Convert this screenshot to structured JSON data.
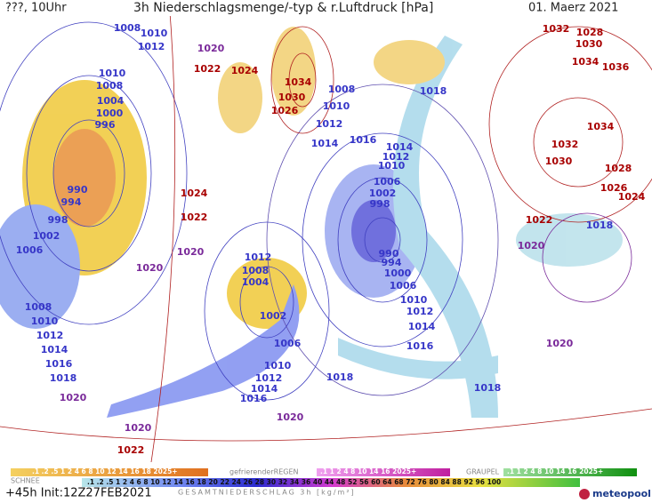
{
  "header": {
    "left": "???, 10Uhr",
    "title": "3h Niederschlagsmenge/-typ & r.Luftdruck [hPa]",
    "date": "01. Maerz 2021"
  },
  "isobar_labels": [
    "1008",
    "1010",
    "1012",
    "1020",
    "1022",
    "1024",
    "1034",
    "1030",
    "1026",
    "1008",
    "1010",
    "1012",
    "1014",
    "1016",
    "1018",
    "1032",
    "1028",
    "1030",
    "1034",
    "1036",
    "1034",
    "1032",
    "1030",
    "1028",
    "1026",
    "1024",
    "1022",
    "1020",
    "1018",
    "1020",
    "1010",
    "1008",
    "1004",
    "1000",
    "996",
    "990",
    "994",
    "998",
    "1002",
    "1006",
    "1024",
    "1022",
    "1020",
    "1020",
    "1012",
    "1008",
    "1004",
    "1002",
    "1006",
    "1010",
    "1012",
    "1014",
    "1016",
    "1018",
    "1020",
    "1020",
    "1022",
    "1020",
    "1018",
    "1016",
    "1014",
    "1012",
    "1010",
    "1008",
    "1014",
    "1012",
    "1010",
    "1006",
    "1002",
    "998",
    "990",
    "994",
    "1000",
    "1006",
    "1010",
    "1012",
    "1014",
    "1016",
    "1018"
  ],
  "legend": {
    "snow": "SCHNEE",
    "freezing_rain": "gefrierenderREGEN",
    "graupel": "GRAUPEL",
    "snow_scale": ".1 .2 .5 1 2 4 6 8 10 12 14 16 18 2025+",
    "rain_scale": ".1 1 2 4 8 10 14 16 2025+",
    "graupel_scale": ".1 1 2 4 8 10 14 16 2025+",
    "total_scale": ".1 .2 .5 1 2 4 6 8 10 12 14 16 18 20 22 24 26 28 30 32 34 36 40 44 48 52 56 60 64 68 72 76 80 84 88 92 96 100",
    "total": "GESAMTNIEDERSCHLAG 3h [kg/m²]"
  },
  "footer": {
    "run": "+45h Init:12Z27FEB2021",
    "brand": "meteopool.org"
  }
}
